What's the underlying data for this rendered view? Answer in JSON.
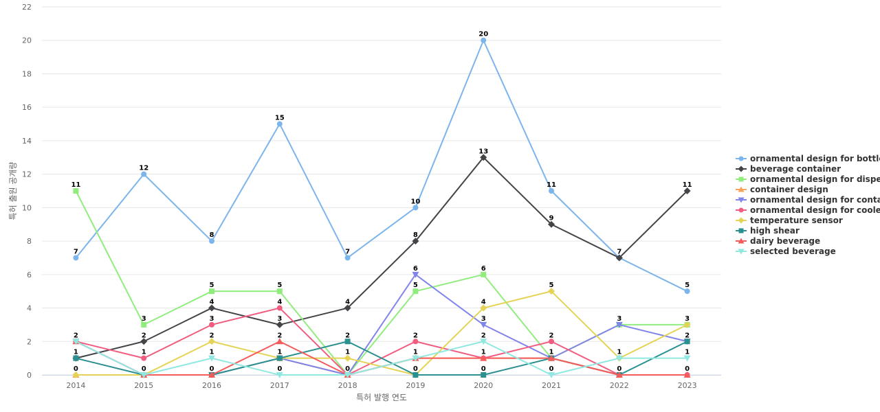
{
  "chart_data": {
    "type": "line",
    "title": "",
    "xlabel": "특허 발행 연도",
    "ylabel": "특허 출원 공개량",
    "categories": [
      "2014",
      "2015",
      "2016",
      "2017",
      "2018",
      "2019",
      "2020",
      "2021",
      "2022",
      "2023"
    ],
    "ylim": [
      0,
      22
    ],
    "yticks": [
      0,
      2,
      4,
      6,
      8,
      10,
      12,
      14,
      16,
      18,
      20,
      22
    ],
    "grid": true,
    "legend_position": "right",
    "series": [
      {
        "name": "ornamental design for bottle",
        "legend_label": "ornamental design for bottle",
        "color": "#7cb5ec",
        "marker": "circle",
        "values": [
          7,
          12,
          8,
          15,
          7,
          10,
          20,
          11,
          7,
          5
        ]
      },
      {
        "name": "beverage container",
        "legend_label": "beverage container",
        "color": "#434348",
        "marker": "diamond",
        "values": [
          1,
          2,
          4,
          3,
          4,
          8,
          13,
          9,
          7,
          11
        ]
      },
      {
        "name": "ornamental design for dispenser",
        "legend_label": "ornamental design for dispe...",
        "color": "#90ed7d",
        "marker": "square",
        "values": [
          11,
          3,
          5,
          5,
          0,
          5,
          6,
          1,
          3,
          3
        ]
      },
      {
        "name": "container design",
        "legend_label": "container design",
        "color": "#f7a35c",
        "marker": "triangle",
        "values": [
          0,
          0,
          0,
          1,
          0,
          1,
          1,
          1,
          0,
          0
        ]
      },
      {
        "name": "ornamental design for container",
        "legend_label": "ornamental design for conta...",
        "color": "#8085e9",
        "marker": "triangle-down",
        "values": [
          2,
          0,
          0,
          1,
          0,
          6,
          3,
          1,
          3,
          2
        ]
      },
      {
        "name": "ornamental design for cooler",
        "legend_label": "ornamental design for cooler",
        "color": "#f15c80",
        "marker": "circle",
        "values": [
          2,
          1,
          3,
          4,
          0,
          2,
          1,
          2,
          0,
          0
        ]
      },
      {
        "name": "temperature sensor",
        "legend_label": "temperature sensor",
        "color": "#e4d354",
        "marker": "diamond",
        "values": [
          0,
          0,
          2,
          1,
          1,
          0,
          4,
          5,
          1,
          3
        ]
      },
      {
        "name": "high shear",
        "legend_label": "high shear",
        "color": "#2b908f",
        "marker": "square",
        "values": [
          1,
          0,
          0,
          1,
          2,
          0,
          0,
          1,
          0,
          2
        ]
      },
      {
        "name": "dairy beverage",
        "legend_label": "dairy beverage",
        "color": "#f45b5b",
        "marker": "triangle",
        "values": [
          2,
          0,
          0,
          2,
          0,
          1,
          1,
          1,
          0,
          0
        ]
      },
      {
        "name": "selected beverage",
        "legend_label": "selected beverage",
        "color": "#91e8e1",
        "marker": "triangle-down",
        "values": [
          2,
          0,
          1,
          0,
          0,
          1,
          2,
          0,
          1,
          1
        ]
      }
    ],
    "data_labels": [
      {
        "category": "2014",
        "values": [
          7,
          11,
          2,
          1,
          0
        ]
      },
      {
        "category": "2015",
        "values": [
          12,
          3,
          2,
          1,
          0
        ]
      },
      {
        "category": "2016",
        "values": [
          8,
          5,
          4,
          3,
          2,
          1,
          0
        ]
      },
      {
        "category": "2017",
        "values": [
          15,
          5,
          4,
          3,
          2,
          1,
          0
        ]
      },
      {
        "category": "2018",
        "values": [
          7,
          4,
          2,
          1,
          0
        ]
      },
      {
        "category": "2019",
        "values": [
          10,
          8,
          6,
          5,
          2,
          1,
          0
        ]
      },
      {
        "category": "2020",
        "values": [
          20,
          13,
          6,
          4,
          3,
          2,
          1,
          0
        ]
      },
      {
        "category": "2021",
        "values": [
          11,
          9,
          5,
          2,
          1,
          0
        ]
      },
      {
        "category": "2022",
        "values": [
          7,
          3,
          1,
          0
        ]
      },
      {
        "category": "2023",
        "values": [
          11,
          5,
          3,
          2,
          1,
          0
        ]
      }
    ]
  }
}
